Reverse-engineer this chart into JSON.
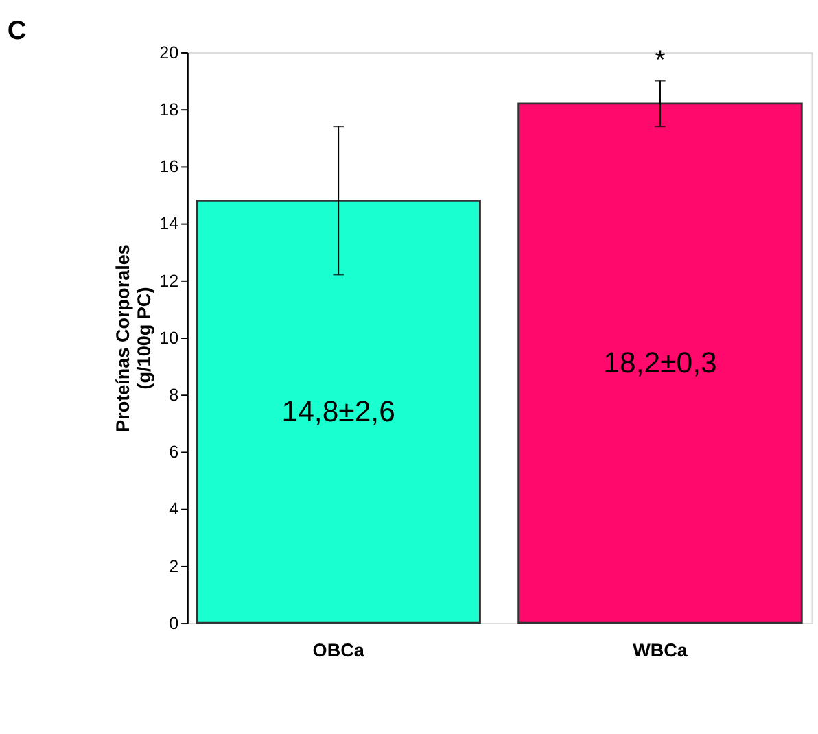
{
  "chart_data": {
    "type": "bar",
    "title": "C",
    "ylabel": "Proteínas Corporales\n(g/100g PC)",
    "categories": [
      "OBCa",
      "WBCa"
    ],
    "values": [
      14.8,
      18.2
    ],
    "colors": [
      "#1affd0",
      "#ff0a6c"
    ],
    "errors": [
      2.6,
      0.8
    ],
    "value_labels": [
      "14,8±2,6",
      "18,2±0,3"
    ],
    "annotations": [
      "*"
    ],
    "ylim": [
      0,
      20
    ],
    "yticks": [
      0,
      2,
      4,
      6,
      8,
      10,
      12,
      14,
      16,
      18,
      20
    ],
    "grid": false
  }
}
